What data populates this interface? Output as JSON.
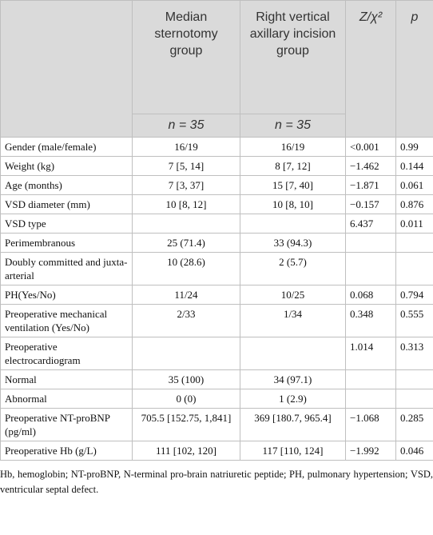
{
  "table": {
    "header": [
      "Median sternotomy group",
      "Right vertical axillary incision group",
      "Z/χ²",
      "p"
    ],
    "subheader": [
      "n = 35",
      "n = 35"
    ],
    "rows": [
      {
        "label": "Gender (male/female)",
        "median": "16/19",
        "right": "16/19",
        "stat": "<0.001",
        "p": "0.99"
      },
      {
        "label": "Weight (kg)",
        "median": "7 [5, 14]",
        "right": "8 [7, 12]",
        "stat": "−1.462",
        "p": "0.144"
      },
      {
        "label": "Age (months)",
        "median": "7 [3, 37]",
        "right": "15 [7, 40]",
        "stat": "−1.871",
        "p": "0.061"
      },
      {
        "label": "VSD diameter (mm)",
        "median": "10 [8, 12]",
        "right": "10 [8, 10]",
        "stat": "−0.157",
        "p": "0.876"
      },
      {
        "label": "VSD type",
        "stat": "6.437",
        "p": "0.011"
      },
      {
        "label": "Perimembranous",
        "median": "25 (71.4)",
        "right": "33 (94.3)"
      },
      {
        "label": "Doubly committed and juxta-arterial",
        "median": "10 (28.6)",
        "right": "2 (5.7)"
      },
      {
        "label": "PH(Yes/No)",
        "median": "11/24",
        "right": "10/25",
        "stat": "0.068",
        "p": "0.794"
      },
      {
        "label": "Preoperative mechanical ventilation (Yes/No)",
        "median": "2/33",
        "right": "1/34",
        "stat": "0.348",
        "p": "0.555"
      },
      {
        "label": "Preoperative electrocardiogram",
        "stat": "1.014",
        "p": "0.313"
      },
      {
        "label": "Normal",
        "median": "35 (100)",
        "right": "34 (97.1)"
      },
      {
        "label": "Abnormal",
        "median": "0 (0)",
        "right": "1 (2.9)"
      },
      {
        "label": "Preoperative NT-proBNP (pg/ml)",
        "median": "705.5 [152.75, 1,841]",
        "right": "369 [180.7, 965.4]",
        "stat": "−1.068",
        "p": "0.285"
      },
      {
        "label": "Preoperative Hb (g/L)",
        "median": "111 [102, 120]",
        "right": "117 [110, 124]",
        "stat": "−1.992",
        "p": "0.046"
      }
    ],
    "footnote": "Hb, hemoglobin; NT-proBNP, N-terminal pro-brain natriuretic peptide; PH, pulmonary hypertension; VSD, ventricular septal defect."
  }
}
